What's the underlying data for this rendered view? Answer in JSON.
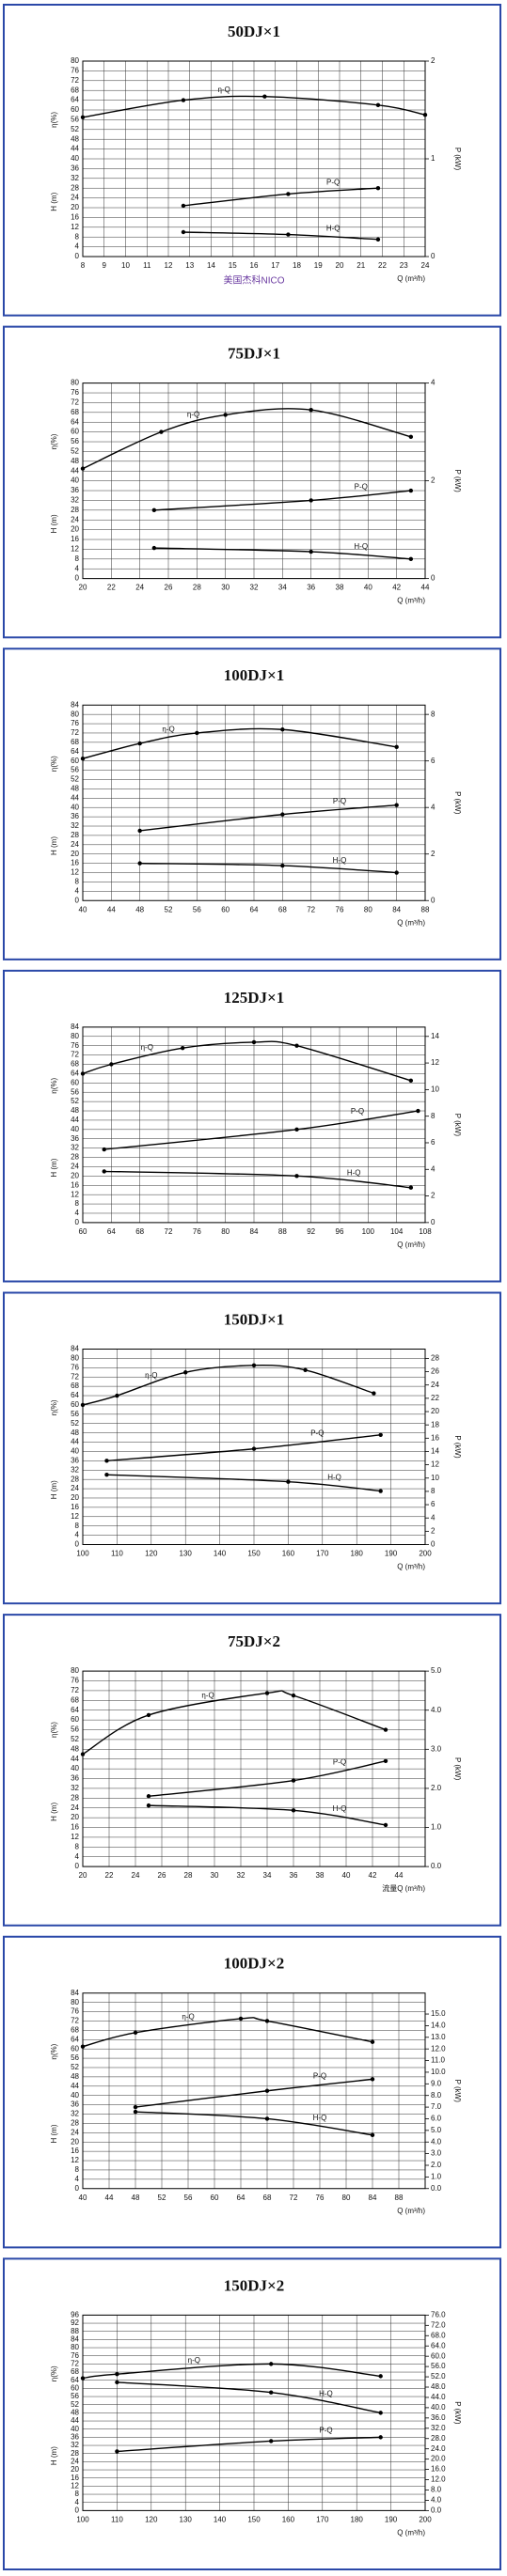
{
  "chart_data": [
    {
      "type": "line",
      "title": "50DJ×1",
      "xlabel": "Q (m³/h)",
      "ylabel_eta": "η(%)",
      "ylabel": "H (m)",
      "y2label": "P (kW)",
      "caption": "美国杰科NICO",
      "xlim": [
        8,
        24
      ],
      "xticks": [
        8,
        9,
        10,
        11,
        12,
        13,
        14,
        15,
        16,
        17,
        18,
        19,
        20,
        21,
        22,
        23,
        24
      ],
      "ylim": [
        0,
        80
      ],
      "yticks": [
        0,
        4,
        8,
        12,
        16,
        20,
        24,
        28,
        32,
        36,
        40,
        44,
        48,
        52,
        56,
        60,
        64,
        68,
        72,
        76,
        80
      ],
      "y2lim": [
        0,
        2
      ],
      "y2ticks": [
        0,
        1,
        2
      ],
      "grid": true,
      "series": [
        {
          "name": "η-Q",
          "color": "#000000",
          "axis": "y",
          "x": [
            8,
            12.7,
            16.5,
            21.8,
            24
          ],
          "values": [
            57,
            64,
            65.5,
            62,
            58
          ]
        },
        {
          "name": "P-Q",
          "color": "#000000",
          "axis": "y2",
          "x": [
            12.7,
            17.6,
            21.8
          ],
          "values": [
            0.52,
            0.64,
            0.7
          ]
        },
        {
          "name": "H-Q",
          "color": "#000000",
          "axis": "y",
          "x": [
            12.7,
            17.6,
            21.8
          ],
          "values": [
            10,
            9,
            7
          ]
        }
      ]
    },
    {
      "type": "line",
      "title": "75DJ×1",
      "xlabel": "Q (m³/h)",
      "ylabel_eta": "η(%)",
      "ylabel": "H (m)",
      "y2label": "P (kW)",
      "xlim": [
        20,
        44
      ],
      "xticks": [
        20,
        22,
        24,
        26,
        28,
        30,
        32,
        34,
        36,
        38,
        40,
        42,
        44
      ],
      "ylim": [
        0,
        80
      ],
      "yticks": [
        0,
        4,
        8,
        12,
        16,
        20,
        24,
        28,
        32,
        36,
        40,
        44,
        48,
        52,
        56,
        60,
        64,
        68,
        72,
        76,
        80
      ],
      "y2lim": [
        0,
        4
      ],
      "y2ticks": [
        0,
        2,
        4
      ],
      "grid": true,
      "series": [
        {
          "name": "η-Q",
          "color": "#000000",
          "axis": "y",
          "x": [
            20,
            25.5,
            30,
            36,
            43
          ],
          "values": [
            45,
            60,
            67,
            69,
            58
          ]
        },
        {
          "name": "P-Q",
          "color": "#000000",
          "axis": "y2",
          "x": [
            25,
            36,
            43
          ],
          "values": [
            1.4,
            1.6,
            1.8
          ]
        },
        {
          "name": "H-Q",
          "color": "#000000",
          "axis": "y",
          "x": [
            25,
            36,
            43
          ],
          "values": [
            12.5,
            11,
            8
          ]
        }
      ]
    },
    {
      "type": "line",
      "title": "100DJ×1",
      "xlabel": "Q (m³/h)",
      "ylabel_eta": "η(%)",
      "ylabel": "H (m)",
      "y2label": "P (kW)",
      "xlim": [
        40,
        88
      ],
      "xticks": [
        40,
        44,
        48,
        52,
        56,
        60,
        64,
        68,
        72,
        76,
        80,
        84,
        88
      ],
      "ylim": [
        0,
        84
      ],
      "yticks": [
        0,
        4,
        8,
        12,
        16,
        20,
        24,
        28,
        32,
        36,
        40,
        44,
        48,
        52,
        56,
        60,
        64,
        68,
        72,
        76,
        80,
        84
      ],
      "y2lim": [
        0,
        8.4
      ],
      "y2ticks": [
        0,
        2,
        4,
        6,
        8
      ],
      "grid": true,
      "series": [
        {
          "name": "η-Q",
          "color": "#000000",
          "axis": "y",
          "x": [
            40,
            48,
            56,
            68,
            84
          ],
          "values": [
            61,
            67.5,
            72,
            73.5,
            66
          ]
        },
        {
          "name": "P-Q",
          "color": "#000000",
          "axis": "y2",
          "x": [
            48,
            68,
            84
          ],
          "values": [
            3.0,
            3.7,
            4.1
          ]
        },
        {
          "name": "H-Q",
          "color": "#000000",
          "axis": "y",
          "x": [
            48,
            68,
            84
          ],
          "values": [
            16,
            15,
            12
          ]
        }
      ]
    },
    {
      "type": "line",
      "title": "125DJ×1",
      "xlabel": "Q (m³/h)",
      "ylabel_eta": "η(%)",
      "ylabel": "H (m)",
      "y2label": "P (kW)",
      "xlim": [
        60,
        108
      ],
      "xticks": [
        60,
        64,
        68,
        72,
        76,
        80,
        84,
        88,
        92,
        96,
        100,
        104,
        108
      ],
      "ylim": [
        0,
        84
      ],
      "yticks": [
        0,
        4,
        8,
        12,
        16,
        20,
        24,
        28,
        32,
        36,
        40,
        44,
        48,
        52,
        56,
        60,
        64,
        68,
        72,
        76,
        80,
        84
      ],
      "y2lim": [
        0,
        14.7
      ],
      "y2ticks": [
        0,
        2,
        4,
        6,
        8,
        10,
        12,
        14
      ],
      "grid": true,
      "series": [
        {
          "name": "η-Q",
          "color": "#000000",
          "axis": "y",
          "x": [
            60,
            64,
            74,
            84,
            90,
            106
          ],
          "values": [
            64,
            68,
            75,
            77.5,
            76,
            61
          ]
        },
        {
          "name": "P-Q",
          "color": "#000000",
          "axis": "y2",
          "x": [
            63,
            90,
            107
          ],
          "values": [
            5.5,
            7.0,
            8.4
          ]
        },
        {
          "name": "H-Q",
          "color": "#000000",
          "axis": "y",
          "x": [
            63,
            90,
            106
          ],
          "values": [
            22,
            20,
            15
          ]
        }
      ]
    },
    {
      "type": "line",
      "title": "150DJ×1",
      "xlabel": "Q (m³/h)",
      "ylabel_eta": "η(%)",
      "ylabel": "H (m)",
      "y2label": "P (kW)",
      "xlim": [
        100,
        200
      ],
      "xticks": [
        100,
        110,
        120,
        130,
        140,
        150,
        160,
        170,
        180,
        190,
        200
      ],
      "ylim": [
        0,
        84
      ],
      "yticks": [
        0,
        4,
        8,
        12,
        16,
        20,
        24,
        28,
        32,
        36,
        40,
        44,
        48,
        52,
        56,
        60,
        64,
        68,
        72,
        76,
        80,
        84
      ],
      "y2lim": [
        0,
        29.4
      ],
      "y2ticks": [
        0,
        2,
        4,
        6,
        8,
        10,
        12,
        14,
        16,
        18,
        20,
        22,
        24,
        26,
        28
      ],
      "grid": true,
      "series": [
        {
          "name": "η-Q",
          "color": "#000000",
          "axis": "y",
          "x": [
            100,
            110,
            130,
            150,
            165,
            185
          ],
          "values": [
            60,
            64,
            74,
            77,
            75,
            65
          ]
        },
        {
          "name": "P-Q",
          "color": "#000000",
          "axis": "y2",
          "x": [
            107,
            150,
            187
          ],
          "values": [
            12.6,
            14.4,
            16.5
          ]
        },
        {
          "name": "H-Q",
          "color": "#000000",
          "axis": "y",
          "x": [
            107,
            160,
            187
          ],
          "values": [
            30,
            27,
            23
          ]
        }
      ]
    },
    {
      "type": "line",
      "title": "75DJ×2",
      "xlabel": "流量Q (m³/h)",
      "ylabel_eta": "η(%)",
      "ylabel": "H (m)",
      "y2label": "P (kW)",
      "xlim": [
        20,
        46
      ],
      "xticks": [
        20,
        22,
        24,
        26,
        28,
        30,
        32,
        34,
        36,
        38,
        40,
        42,
        44
      ],
      "ylim": [
        0,
        80
      ],
      "yticks": [
        0,
        4,
        8,
        12,
        16,
        20,
        24,
        28,
        32,
        36,
        40,
        44,
        48,
        52,
        56,
        60,
        64,
        68,
        72,
        76,
        80
      ],
      "y2lim": [
        0,
        5
      ],
      "y2ticks": [
        {
          "value": 0,
          "label": "0.0"
        },
        {
          "value": 1,
          "label": "1.0"
        },
        {
          "value": 2,
          "label": "2.0"
        },
        {
          "value": 3,
          "label": "3.0"
        },
        {
          "value": 4,
          "label": "4.0"
        },
        {
          "value": 5,
          "label": "5.0"
        }
      ],
      "grid": true,
      "series": [
        {
          "name": "η-Q",
          "color": "#000000",
          "axis": "y",
          "x": [
            20,
            25,
            34,
            36,
            43
          ],
          "values": [
            46,
            62,
            71,
            70,
            56
          ]
        },
        {
          "name": "P-Q",
          "color": "#000000",
          "axis": "y2",
          "x": [
            25,
            36,
            43
          ],
          "values": [
            1.8,
            2.2,
            2.7
          ]
        },
        {
          "name": "H-Q",
          "color": "#000000",
          "axis": "y",
          "x": [
            25,
            36,
            43
          ],
          "values": [
            25,
            23,
            17
          ]
        }
      ]
    },
    {
      "type": "line",
      "title": "100DJ×2",
      "xlabel": "Q (m³/h)",
      "ylabel_eta": "η(%)",
      "ylabel": "H (m)",
      "y2label": "P (kW)",
      "xlim": [
        40,
        92
      ],
      "xticks": [
        40,
        44,
        48,
        52,
        56,
        60,
        64,
        68,
        72,
        76,
        80,
        84,
        88
      ],
      "ylim": [
        0,
        84
      ],
      "yticks": [
        0,
        4,
        8,
        12,
        16,
        20,
        24,
        28,
        32,
        36,
        40,
        44,
        48,
        52,
        56,
        60,
        64,
        68,
        72,
        76,
        80,
        84
      ],
      "y2lim": [
        0,
        16.8
      ],
      "y2ticks": [
        {
          "value": 0,
          "label": "0.0"
        },
        {
          "value": 1,
          "label": "1.0"
        },
        {
          "value": 2,
          "label": "2.0"
        },
        {
          "value": 3,
          "label": "3.0"
        },
        {
          "value": 4,
          "label": "4.0"
        },
        {
          "value": 5,
          "label": "5.0"
        },
        {
          "value": 6,
          "label": "6.0"
        },
        {
          "value": 7,
          "label": "7.0"
        },
        {
          "value": 8,
          "label": "8.0"
        },
        {
          "value": 9,
          "label": "9.0"
        },
        {
          "value": 10,
          "label": "10.0"
        },
        {
          "value": 11,
          "label": "11.0"
        },
        {
          "value": 12,
          "label": "12.0"
        },
        {
          "value": 13,
          "label": "13.0"
        },
        {
          "value": 14,
          "label": "14.0"
        },
        {
          "value": 15,
          "label": "15.0"
        }
      ],
      "grid": true,
      "series": [
        {
          "name": "η-Q",
          "color": "#000000",
          "axis": "y",
          "x": [
            40,
            48,
            64,
            68,
            84
          ],
          "values": [
            61,
            67,
            73,
            72,
            63
          ]
        },
        {
          "name": "P-Q",
          "color": "#000000",
          "axis": "y2",
          "x": [
            48,
            68,
            84
          ],
          "values": [
            7.0,
            8.4,
            9.4
          ]
        },
        {
          "name": "H-Q",
          "color": "#000000",
          "axis": "y",
          "x": [
            48,
            68,
            84
          ],
          "values": [
            33,
            30,
            23
          ]
        }
      ]
    },
    {
      "type": "line",
      "title": "150DJ×2",
      "xlabel": "Q (m³/h)",
      "ylabel_eta": "η(%)",
      "ylabel": "H (m)",
      "y2label": "P (kW)",
      "xlim": [
        100,
        200
      ],
      "xticks": [
        100,
        110,
        120,
        130,
        140,
        150,
        160,
        170,
        180,
        190,
        200
      ],
      "ylim": [
        0,
        96
      ],
      "yticks": [
        0,
        4,
        8,
        12,
        16,
        20,
        24,
        28,
        32,
        36,
        40,
        44,
        48,
        52,
        56,
        60,
        64,
        68,
        72,
        76,
        80,
        84,
        88,
        92,
        96
      ],
      "y2lim": [
        0,
        76
      ],
      "y2ticks": [
        {
          "value": 0,
          "label": "0.0"
        },
        {
          "value": 4,
          "label": "4.0"
        },
        {
          "value": 8,
          "label": "8.0"
        },
        {
          "value": 12,
          "label": "12.0"
        },
        {
          "value": 16,
          "label": "16.0"
        },
        {
          "value": 20,
          "label": "20.0"
        },
        {
          "value": 24,
          "label": "24.0"
        },
        {
          "value": 28,
          "label": "28.0"
        },
        {
          "value": 32,
          "label": "32.0"
        },
        {
          "value": 36,
          "label": "36.0"
        },
        {
          "value": 40,
          "label": "40.0"
        },
        {
          "value": 44,
          "label": "44.0"
        },
        {
          "value": 48,
          "label": "48.0"
        },
        {
          "value": 52,
          "label": "52.0"
        },
        {
          "value": 56,
          "label": "56.0"
        },
        {
          "value": 60,
          "label": "60.0"
        },
        {
          "value": 64,
          "label": "64.0"
        },
        {
          "value": 68,
          "label": "68.0"
        },
        {
          "value": 72,
          "label": "72.0"
        },
        {
          "value": 76,
          "label": "76.0"
        }
      ],
      "grid": true,
      "series": [
        {
          "name": "η-Q",
          "color": "#000000",
          "axis": "y",
          "x": [
            100,
            110,
            155,
            187
          ],
          "values": [
            65,
            67,
            72,
            66
          ]
        },
        {
          "name": "H-Q",
          "color": "#000000",
          "axis": "y",
          "x": [
            110,
            155,
            187
          ],
          "values": [
            63,
            58,
            48
          ]
        },
        {
          "name": "P-Q",
          "color": "#000000",
          "axis": "y2",
          "x": [
            110,
            155,
            187
          ],
          "values": [
            23,
            27,
            28.5
          ]
        }
      ]
    }
  ]
}
